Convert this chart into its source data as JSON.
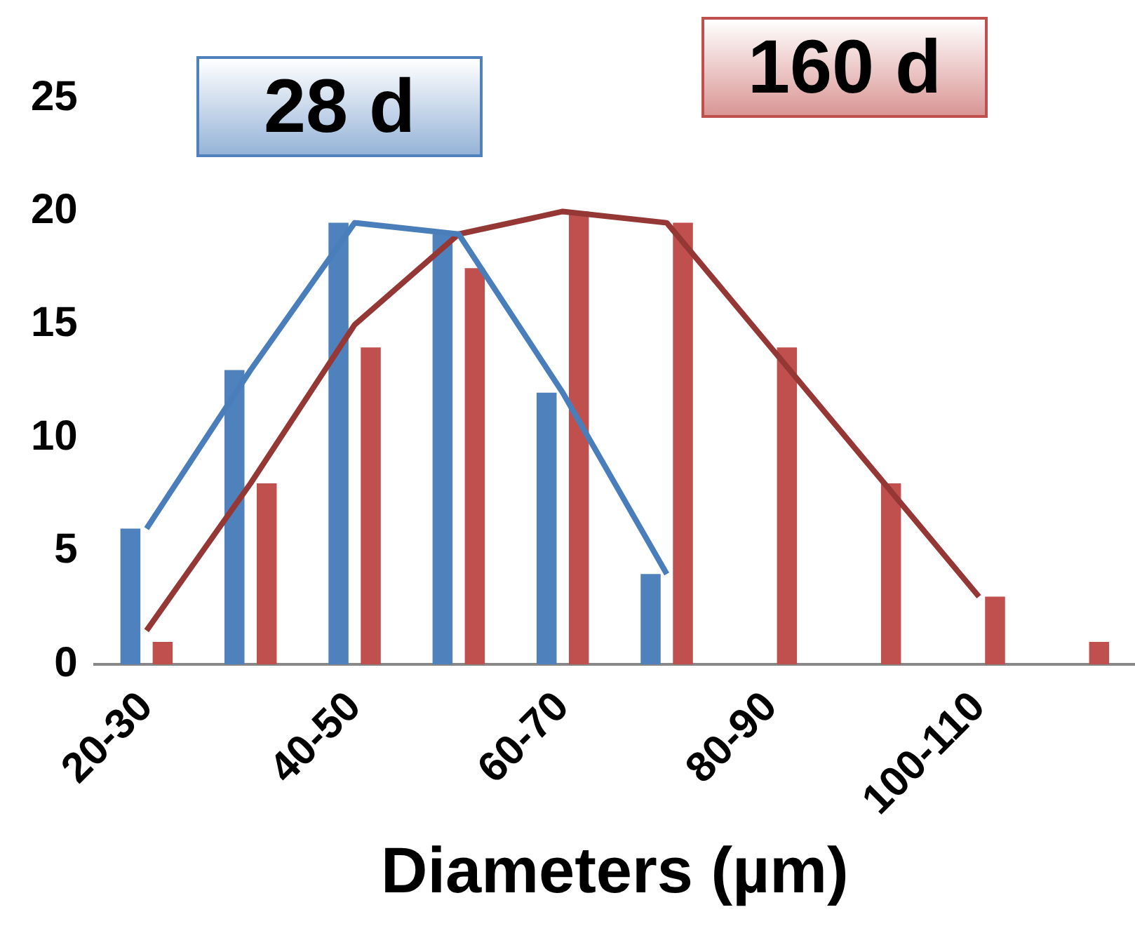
{
  "chart_data": {
    "type": "bar",
    "xlabel": "Diameters (µm)",
    "categories": [
      "20-30",
      null,
      "40-50",
      null,
      "60-70",
      null,
      "80-90",
      null,
      "100-110",
      null
    ],
    "series": [
      {
        "name": "28 d",
        "color": "#4f81bd",
        "values": [
          6,
          13,
          19.5,
          19,
          12,
          4,
          null,
          null,
          null,
          null
        ]
      },
      {
        "name": "160 d",
        "color": "#c0504d",
        "values": [
          1,
          8,
          14,
          17.5,
          20,
          19.5,
          14,
          8,
          3,
          1
        ]
      },
      {
        "type": "line",
        "color": "#4a7ebb",
        "values": [
          6,
          13,
          19.5,
          19,
          12,
          4,
          null,
          null,
          null,
          null
        ]
      },
      {
        "type": "line",
        "color": "#953735",
        "values": [
          1.5,
          8,
          15,
          19,
          20,
          19.5,
          14,
          8.5,
          3,
          null
        ]
      }
    ],
    "ylim": [
      0,
      25
    ],
    "yticks": [
      0,
      5,
      10,
      15,
      20,
      25
    ],
    "grid": false,
    "legend": "top",
    "marker": "none"
  }
}
